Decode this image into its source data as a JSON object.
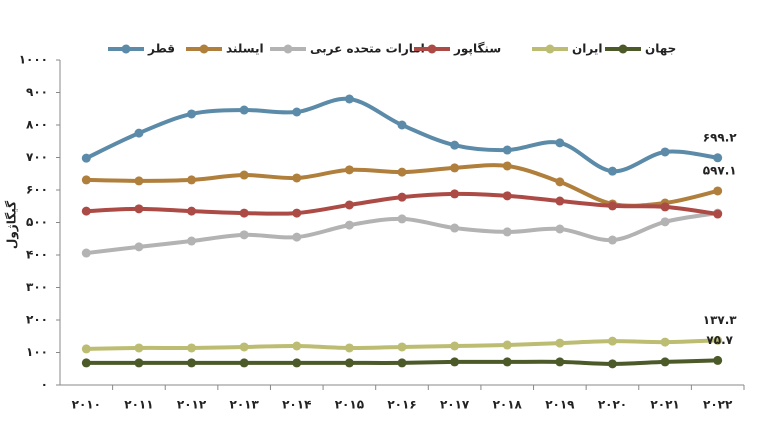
{
  "chart_data": {
    "type": "line",
    "y_label": "گیگاژول",
    "categories": [
      "۲۰۱۰",
      "۲۰۱۱",
      "۲۰۱۲",
      "۲۰۱۳",
      "۲۰۱۴",
      "۲۰۱۵",
      "۲۰۱۶",
      "۲۰۱۷",
      "۲۰۱۸",
      "۲۰۱۹",
      "۲۰۲۰",
      "۲۰۲۱",
      "۲۰۲۲"
    ],
    "ylim": [
      0,
      1000
    ],
    "yticks": [
      {
        "value": 0,
        "label": "۰"
      },
      {
        "value": 100,
        "label": "۱۰۰"
      },
      {
        "value": 200,
        "label": "۲۰۰"
      },
      {
        "value": 300,
        "label": "۳۰۰"
      },
      {
        "value": 400,
        "label": "۴۰۰"
      },
      {
        "value": 500,
        "label": "۵۰۰"
      },
      {
        "value": 600,
        "label": "۶۰۰"
      },
      {
        "value": 700,
        "label": "۷۰۰"
      },
      {
        "value": 800,
        "label": "۸۰۰"
      },
      {
        "value": 900,
        "label": "۹۰۰"
      },
      {
        "value": 1000,
        "label": "۱۰۰۰"
      }
    ],
    "series": [
      {
        "name": "قطر",
        "color": "#5b8ba8",
        "values": [
          698,
          775,
          834,
          846,
          840,
          880,
          800,
          738,
          723,
          745,
          658,
          717,
          699.2
        ],
        "value_labels": [
          null,
          null,
          null,
          null,
          null,
          null,
          null,
          null,
          null,
          null,
          null,
          null,
          "۶۹۹.۲"
        ]
      },
      {
        "name": "ایسلند",
        "color": "#b07f3c",
        "values": [
          631,
          628,
          631,
          646,
          637,
          662,
          655,
          668,
          674,
          625,
          557,
          560,
          597.1
        ],
        "value_labels": [
          null,
          null,
          null,
          null,
          null,
          null,
          null,
          null,
          null,
          null,
          null,
          null,
          "۵۹۷.۱"
        ]
      },
      {
        "name": "امارات متحده عربی",
        "color": "#b3b3b3",
        "values": [
          406,
          425,
          443,
          462,
          455,
          492,
          511,
          483,
          471,
          480,
          446,
          502,
          529
        ]
      },
      {
        "name": "سنگاپور",
        "color": "#ac4a45",
        "values": [
          535,
          542,
          535,
          529,
          529,
          554,
          578,
          588,
          582,
          566,
          551,
          548,
          526
        ]
      },
      {
        "name": "ایران",
        "color": "#bcbd72",
        "values": [
          111,
          114,
          114,
          117,
          120,
          114,
          117,
          120,
          123,
          129,
          135,
          132,
          137.3
        ],
        "value_labels": [
          null,
          null,
          null,
          null,
          null,
          null,
          null,
          null,
          null,
          null,
          null,
          null,
          "۱۳۷.۳"
        ]
      },
      {
        "name": "جهان",
        "color": "#4b5a28",
        "values": [
          68,
          68,
          68,
          68,
          68,
          68,
          68,
          71,
          71,
          71,
          65,
          71,
          75.7
        ],
        "value_labels": [
          null,
          null,
          null,
          null,
          null,
          null,
          null,
          null,
          null,
          null,
          null,
          null,
          "۷۵.۷"
        ]
      }
    ]
  }
}
